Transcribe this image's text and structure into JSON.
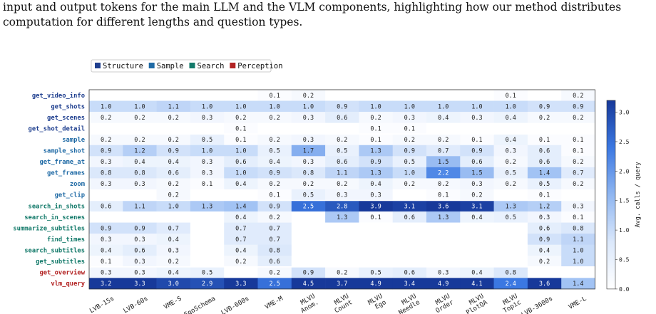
{
  "caption": {
    "line1": "input and output tokens for the main LLM and the VLM components, highlighting how our method distributes",
    "line2": "computation for different lengths and question types."
  },
  "colors": {
    "Structure": "#1f3f8f",
    "Sample": "#1f6aa5",
    "Search": "#137a6a",
    "Perception": "#b22222",
    "cmap_low": "#ffffff",
    "cmap_high": "#17399a"
  },
  "chart_data": {
    "type": "heatmap",
    "legend": [
      {
        "name": "Structure",
        "color": "#1f3f8f"
      },
      {
        "name": "Sample",
        "color": "#1f6aa5"
      },
      {
        "name": "Search",
        "color": "#137a6a"
      },
      {
        "name": "Perception",
        "color": "#b22222"
      }
    ],
    "legend_position": "top-left",
    "columns": [
      "LVB-15s",
      "LVB-60s",
      "VME-S",
      "EgoSchema",
      "LVB-600s",
      "VME-M",
      "MLVU Anom.",
      "MLVU Count",
      "MLVU Ego",
      "MLVU Needle",
      "MLVU Order",
      "MLVU PlotQA",
      "MLVU Topic",
      "LVB-3600s",
      "VME-L"
    ],
    "rows": [
      {
        "name": "get_video_info",
        "group": "Structure",
        "values": [
          null,
          null,
          null,
          null,
          null,
          0.1,
          0.2,
          null,
          null,
          null,
          null,
          null,
          0.1,
          null,
          0.2
        ]
      },
      {
        "name": "get_shots",
        "group": "Structure",
        "values": [
          1.0,
          1.0,
          1.1,
          1.0,
          1.0,
          1.0,
          1.0,
          0.9,
          1.0,
          1.0,
          1.0,
          1.0,
          1.0,
          0.9,
          0.9
        ]
      },
      {
        "name": "get_scenes",
        "group": "Structure",
        "values": [
          0.2,
          0.2,
          0.2,
          0.3,
          0.2,
          0.2,
          0.3,
          0.6,
          0.2,
          0.3,
          0.4,
          0.3,
          0.4,
          0.2,
          0.2
        ]
      },
      {
        "name": "get_shot_detail",
        "group": "Structure",
        "values": [
          null,
          null,
          null,
          null,
          0.1,
          null,
          null,
          null,
          0.1,
          0.1,
          null,
          null,
          null,
          null,
          null
        ]
      },
      {
        "name": "sample",
        "group": "Sample",
        "values": [
          0.2,
          0.2,
          0.2,
          0.5,
          0.1,
          0.2,
          0.3,
          0.2,
          0.1,
          0.2,
          0.2,
          0.1,
          0.4,
          0.1,
          0.1
        ]
      },
      {
        "name": "sample_shot",
        "group": "Sample",
        "values": [
          0.9,
          1.2,
          0.9,
          1.0,
          1.0,
          0.5,
          1.7,
          0.5,
          1.3,
          0.9,
          0.7,
          0.9,
          0.3,
          0.6,
          0.1
        ]
      },
      {
        "name": "get_frame_at",
        "group": "Sample",
        "values": [
          0.3,
          0.4,
          0.4,
          0.3,
          0.6,
          0.4,
          0.3,
          0.6,
          0.9,
          0.5,
          1.5,
          0.6,
          0.2,
          0.6,
          0.2
        ]
      },
      {
        "name": "get_frames",
        "group": "Sample",
        "values": [
          0.8,
          0.8,
          0.6,
          0.3,
          1.0,
          0.9,
          0.8,
          1.1,
          1.3,
          1.0,
          2.2,
          1.5,
          0.5,
          1.4,
          0.7
        ]
      },
      {
        "name": "zoom",
        "group": "Sample",
        "values": [
          0.3,
          0.3,
          0.2,
          0.1,
          0.4,
          0.2,
          0.2,
          0.2,
          0.4,
          0.2,
          0.2,
          0.3,
          0.2,
          0.5,
          0.2
        ]
      },
      {
        "name": "get_clip",
        "group": "Sample",
        "values": [
          null,
          null,
          0.2,
          null,
          null,
          0.1,
          0.5,
          0.3,
          0.3,
          null,
          0.1,
          0.2,
          null,
          0.1,
          null
        ]
      },
      {
        "name": "search_in_shots",
        "group": "Search",
        "values": [
          0.6,
          1.1,
          1.0,
          1.3,
          1.4,
          0.9,
          2.5,
          2.8,
          3.9,
          3.1,
          3.6,
          3.1,
          1.3,
          1.2,
          0.3
        ]
      },
      {
        "name": "search_in_scenes",
        "group": "Search",
        "values": [
          null,
          null,
          null,
          null,
          0.4,
          0.2,
          null,
          1.3,
          0.1,
          0.6,
          1.3,
          0.4,
          0.5,
          0.3,
          0.1
        ]
      },
      {
        "name": "summarize_subtitles",
        "group": "Search",
        "values": [
          0.9,
          0.9,
          0.7,
          null,
          0.7,
          0.7,
          null,
          null,
          null,
          null,
          null,
          null,
          null,
          0.6,
          0.8
        ]
      },
      {
        "name": "find_times",
        "group": "Search",
        "values": [
          0.3,
          0.3,
          0.4,
          null,
          0.7,
          0.7,
          null,
          null,
          null,
          null,
          null,
          null,
          null,
          0.9,
          1.1
        ]
      },
      {
        "name": "search_subtitles",
        "group": "Search",
        "values": [
          0.4,
          0.6,
          0.3,
          null,
          0.4,
          0.8,
          null,
          null,
          null,
          null,
          null,
          null,
          null,
          0.4,
          1.0
        ]
      },
      {
        "name": "get_subtitles",
        "group": "Search",
        "values": [
          0.1,
          0.3,
          0.2,
          null,
          0.2,
          0.6,
          null,
          null,
          null,
          null,
          null,
          null,
          null,
          0.2,
          1.0
        ]
      },
      {
        "name": "get_overview",
        "group": "Perception",
        "values": [
          0.3,
          0.3,
          0.4,
          0.5,
          null,
          0.2,
          0.9,
          0.2,
          0.5,
          0.6,
          0.3,
          0.4,
          0.8,
          null,
          null
        ]
      },
      {
        "name": "vlm_query",
        "group": "Perception",
        "values": [
          3.2,
          3.3,
          3.0,
          2.9,
          3.3,
          2.5,
          4.5,
          3.7,
          4.9,
          3.4,
          4.9,
          4.1,
          2.4,
          3.6,
          1.4
        ]
      }
    ],
    "group_separators_after": [
      3,
      9,
      15
    ],
    "colorbar": {
      "label": "Avg. calls / query",
      "min": 0.0,
      "max": 3.2,
      "ticks": [
        "0.0",
        "0.5",
        "1.0",
        "1.5",
        "2.0",
        "2.5",
        "3.0"
      ]
    }
  }
}
